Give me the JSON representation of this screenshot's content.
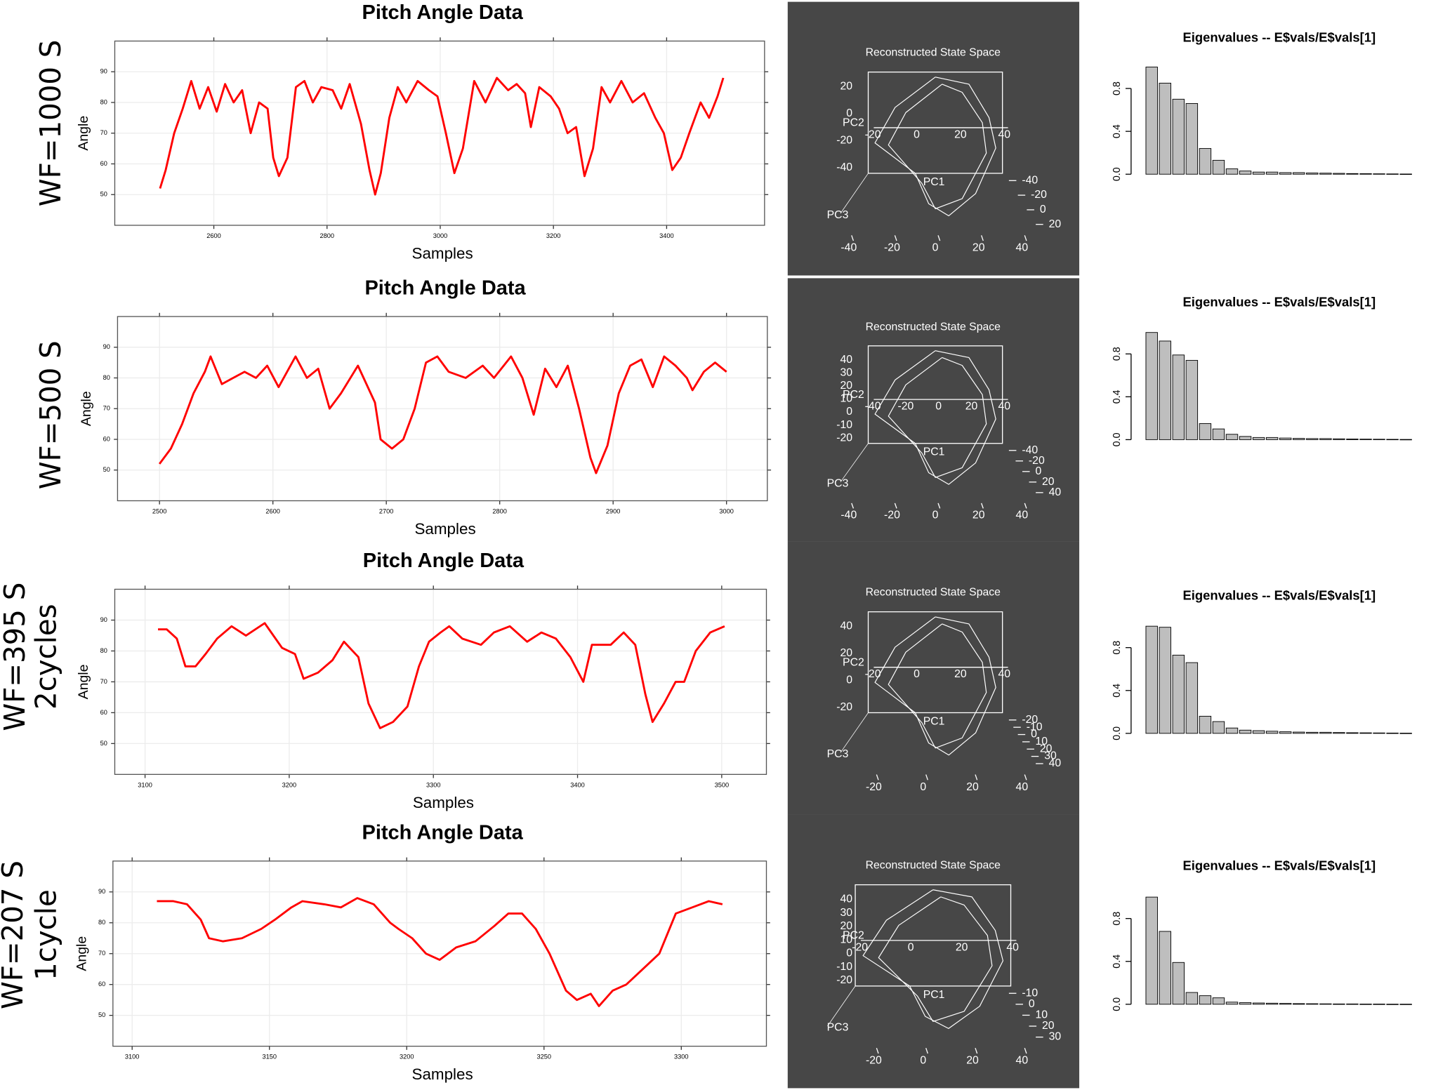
{
  "row_labels": [
    [
      "WF=1000 S"
    ],
    [
      "WF=500 S"
    ],
    [
      "WF=395 S",
      "2cycles"
    ],
    [
      "WF=207 S",
      "1cycle"
    ]
  ],
  "chart_data": [
    {
      "type": "line",
      "title": "Pitch Angle Data",
      "x_label": "Samples",
      "y_label": "Angle",
      "xlim": [
        2425,
        3573
      ],
      "xticks": [
        2600,
        2800,
        3000,
        3200,
        3400
      ],
      "ylim": [
        40,
        100
      ],
      "yticks": [
        50,
        60,
        70,
        80,
        90
      ],
      "grid": true,
      "series": [
        {
          "color": "#ff0000",
          "x": [
            2505,
            2515,
            2530,
            2545,
            2560,
            2575,
            2590,
            2605,
            2620,
            2635,
            2650,
            2665,
            2680,
            2695,
            2705,
            2715,
            2730,
            2745,
            2760,
            2775,
            2790,
            2810,
            2825,
            2840,
            2860,
            2875,
            2885,
            2895,
            2910,
            2925,
            2940,
            2960,
            2980,
            2995,
            3010,
            3025,
            3040,
            3060,
            3080,
            3100,
            3120,
            3135,
            3150,
            3160,
            3175,
            3195,
            3210,
            3225,
            3240,
            3255,
            3270,
            3285,
            3300,
            3320,
            3340,
            3360,
            3380,
            3395,
            3410,
            3425,
            3440,
            3460,
            3475,
            3490,
            3500
          ],
          "values": [
            52,
            58,
            70,
            78,
            87,
            78,
            85,
            77,
            86,
            80,
            84,
            70,
            80,
            78,
            62,
            56,
            62,
            85,
            87,
            80,
            85,
            84,
            78,
            86,
            73,
            58,
            50,
            57,
            75,
            85,
            80,
            87,
            84,
            82,
            70,
            57,
            65,
            87,
            80,
            88,
            84,
            86,
            83,
            72,
            85,
            82,
            78,
            70,
            72,
            56,
            65,
            85,
            80,
            87,
            80,
            83,
            75,
            70,
            58,
            62,
            70,
            80,
            75,
            82,
            88
          ]
        }
      ]
    },
    {
      "type": "state_space",
      "title": "Reconstructed State Space",
      "labels": [
        "PC1",
        "PC2",
        "PC3"
      ],
      "left_ticks": [
        20,
        0,
        -20,
        -40
      ],
      "front_ticks": [
        -20,
        0,
        20,
        40
      ],
      "right_ticks": [
        -40,
        -20,
        0,
        20
      ],
      "bottom_ticks": [
        -40,
        -20,
        0,
        20,
        40
      ]
    },
    {
      "type": "bar",
      "title": "Eigenvalues -- E$vals/E$vals[1]",
      "ylim": [
        0,
        1.0
      ],
      "yticks": [
        {
          "value": 0,
          "label": "0.0"
        },
        0.4,
        0.8
      ],
      "color": "#bebebe",
      "values": [
        1.0,
        0.85,
        0.7,
        0.66,
        0.24,
        0.13,
        0.05,
        0.03,
        0.02,
        0.02,
        0.015,
        0.015,
        0.012,
        0.01,
        0.008,
        0.006,
        0.005,
        0.004,
        0.003,
        0.002
      ]
    },
    {
      "type": "line",
      "title": "Pitch Angle Data",
      "x_label": "Samples",
      "y_label": "Angle",
      "xlim": [
        2463,
        3036
      ],
      "xticks": [
        2500,
        2600,
        2700,
        2800,
        2900,
        3000
      ],
      "ylim": [
        40,
        100
      ],
      "yticks": [
        50,
        60,
        70,
        80,
        90
      ],
      "grid": true,
      "series": [
        {
          "color": "#ff0000",
          "x": [
            2500,
            2510,
            2520,
            2530,
            2540,
            2545,
            2555,
            2565,
            2575,
            2585,
            2595,
            2605,
            2620,
            2630,
            2640,
            2650,
            2660,
            2675,
            2690,
            2695,
            2705,
            2715,
            2725,
            2735,
            2745,
            2755,
            2770,
            2785,
            2795,
            2810,
            2820,
            2830,
            2840,
            2850,
            2860,
            2870,
            2880,
            2885,
            2895,
            2905,
            2915,
            2925,
            2935,
            2945,
            2955,
            2965,
            2970,
            2980,
            2990,
            3000
          ],
          "values": [
            52,
            57,
            65,
            75,
            82,
            87,
            78,
            80,
            82,
            80,
            84,
            77,
            87,
            80,
            83,
            70,
            75,
            84,
            72,
            60,
            57,
            60,
            70,
            85,
            87,
            82,
            80,
            84,
            80,
            87,
            80,
            68,
            83,
            77,
            84,
            70,
            54,
            49,
            58,
            75,
            84,
            86,
            77,
            87,
            84,
            80,
            76,
            82,
            85,
            82
          ]
        }
      ]
    },
    {
      "type": "state_space",
      "title": "Reconstructed State Space",
      "labels": [
        "PC1",
        "PC2",
        "PC3"
      ],
      "left_ticks": [
        40,
        30,
        20,
        10,
        0,
        -10,
        -20
      ],
      "front_ticks": [
        -40,
        -20,
        0,
        20,
        40
      ],
      "right_ticks": [
        -40,
        -20,
        0,
        20,
        40
      ],
      "bottom_ticks": [
        -40,
        -20,
        0,
        20,
        40
      ]
    },
    {
      "type": "bar",
      "title": "Eigenvalues -- E$vals/E$vals[1]",
      "ylim": [
        0,
        1.0
      ],
      "yticks": [
        {
          "value": 0,
          "label": "0.0"
        },
        0.4,
        0.8
      ],
      "color": "#bebebe",
      "values": [
        1.0,
        0.92,
        0.79,
        0.74,
        0.15,
        0.1,
        0.05,
        0.03,
        0.02,
        0.02,
        0.015,
        0.012,
        0.01,
        0.01,
        0.008,
        0.006,
        0.005,
        0.004,
        0.003,
        0.002
      ]
    },
    {
      "type": "line",
      "title": "Pitch Angle Data",
      "x_label": "Samples",
      "y_label": "Angle",
      "xlim": [
        3079,
        3531
      ],
      "xticks": [
        3100,
        3200,
        3300,
        3400,
        3500
      ],
      "ylim": [
        40,
        100
      ],
      "yticks": [
        50,
        60,
        70,
        80,
        90
      ],
      "grid": true,
      "series": [
        {
          "color": "#ff0000",
          "x": [
            3109,
            3115,
            3122,
            3128,
            3135,
            3142,
            3150,
            3160,
            3170,
            3183,
            3195,
            3204,
            3210,
            3220,
            3230,
            3238,
            3248,
            3255,
            3263,
            3272,
            3282,
            3290,
            3297,
            3305,
            3311,
            3320,
            3333,
            3342,
            3353,
            3365,
            3375,
            3385,
            3395,
            3404,
            3410,
            3423,
            3432,
            3440,
            3447,
            3452,
            3460,
            3468,
            3474,
            3482,
            3492,
            3502
          ],
          "values": [
            87,
            87,
            84,
            75,
            75,
            79,
            84,
            88,
            85,
            89,
            81,
            79,
            71,
            73,
            77,
            83,
            78,
            63,
            55,
            57,
            62,
            75,
            83,
            86,
            88,
            84,
            82,
            86,
            88,
            83,
            86,
            84,
            78,
            70,
            82,
            82,
            86,
            82,
            66,
            57,
            63,
            70,
            70,
            80,
            86,
            88
          ]
        }
      ]
    },
    {
      "type": "state_space",
      "title": "Reconstructed State Space",
      "labels": [
        "PC1",
        "PC2",
        "PC3"
      ],
      "left_ticks": [
        40,
        20,
        0,
        -20
      ],
      "front_ticks": [
        -20,
        0,
        20,
        40
      ],
      "right_ticks": [
        -20,
        -10,
        0,
        10,
        20,
        30,
        40
      ],
      "bottom_ticks": [
        -20,
        0,
        20,
        40
      ]
    },
    {
      "type": "bar",
      "title": "Eigenvalues -- E$vals/E$vals[1]",
      "ylim": [
        0,
        1.0
      ],
      "yticks": [
        {
          "value": 0,
          "label": "0.0"
        },
        0.4,
        0.8
      ],
      "color": "#bebebe",
      "values": [
        1.0,
        0.99,
        0.73,
        0.66,
        0.16,
        0.11,
        0.05,
        0.03,
        0.025,
        0.02,
        0.015,
        0.012,
        0.01,
        0.01,
        0.008,
        0.006,
        0.005,
        0.004,
        0.003,
        0.002
      ]
    },
    {
      "type": "line",
      "title": "Pitch Angle Data",
      "x_label": "Samples",
      "y_label": "Angle",
      "xlim": [
        3093,
        3331
      ],
      "xticks": [
        3100,
        3150,
        3200,
        3250,
        3300
      ],
      "ylim": [
        40,
        100
      ],
      "yticks": [
        50,
        60,
        70,
        80,
        90
      ],
      "grid": true,
      "series": [
        {
          "color": "#ff0000",
          "x": [
            3109,
            3115,
            3120,
            3125,
            3128,
            3133,
            3140,
            3147,
            3152,
            3158,
            3162,
            3170,
            3176,
            3182,
            3188,
            3194,
            3197,
            3202,
            3207,
            3212,
            3218,
            3225,
            3232,
            3237,
            3242,
            3247,
            3252,
            3258,
            3262,
            3267,
            3270,
            3275,
            3280,
            3286,
            3292,
            3298,
            3304,
            3310,
            3315
          ],
          "values": [
            87,
            87,
            86,
            81,
            75,
            74,
            75,
            78,
            81,
            85,
            87,
            86,
            85,
            88,
            86,
            80,
            78,
            75,
            70,
            68,
            72,
            74,
            79,
            83,
            83,
            78,
            70,
            58,
            55,
            57,
            53,
            58,
            60,
            65,
            70,
            83,
            85,
            87,
            86
          ]
        }
      ]
    },
    {
      "type": "state_space",
      "title": "Reconstructed State Space",
      "labels": [
        "PC1",
        "PC2",
        "PC3"
      ],
      "left_ticks": [
        40,
        30,
        20,
        10,
        0,
        -10,
        -20
      ],
      "front_ticks": [
        -20,
        0,
        20,
        40
      ],
      "right_ticks": [
        -10,
        0,
        10,
        20,
        30
      ],
      "bottom_ticks": [
        -20,
        0,
        20,
        40
      ]
    },
    {
      "type": "bar",
      "title": "Eigenvalues -- E$vals/E$vals[1]",
      "ylim": [
        0,
        1.0
      ],
      "yticks": [
        {
          "value": 0,
          "label": "0.0"
        },
        0.4,
        0.8
      ],
      "color": "#bebebe",
      "values": [
        1.0,
        0.68,
        0.39,
        0.11,
        0.08,
        0.06,
        0.02,
        0.015,
        0.012,
        0.01,
        0.008,
        0.006,
        0.005,
        0.004,
        0.003,
        0.003,
        0.002,
        0.002,
        0.001,
        0.001
      ]
    }
  ]
}
